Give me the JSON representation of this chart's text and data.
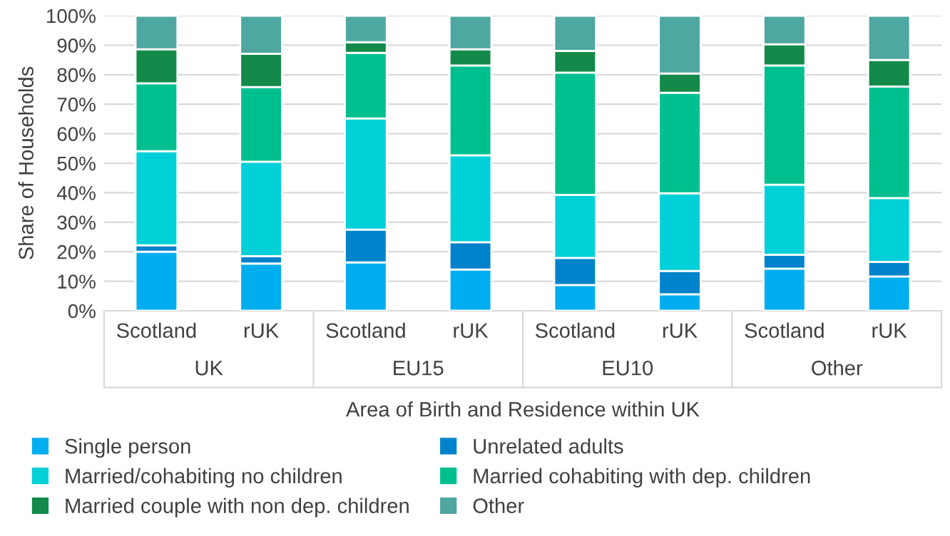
{
  "chart_data": {
    "type": "bar",
    "stacked": true,
    "categories": [
      "Scotland",
      "rUK",
      "Scotland",
      "rUK",
      "Scotland",
      "rUK",
      "Scotland",
      "rUK"
    ],
    "annotations": [
      "UK",
      "EU15",
      "EU10",
      "Other"
    ],
    "xlabel": "Area of Birth and Residence within UK",
    "ylabel": "Share of Households",
    "ylim": [
      0,
      100
    ],
    "yticks": [
      {
        "value": 0,
        "label": "0%"
      },
      {
        "value": 10,
        "label": "10%"
      },
      {
        "value": 20,
        "label": "20%"
      },
      {
        "value": 30,
        "label": "30%"
      },
      {
        "value": 40,
        "label": "40%"
      },
      {
        "value": 50,
        "label": "50%"
      },
      {
        "value": 60,
        "label": "60%"
      },
      {
        "value": 70,
        "label": "70%"
      },
      {
        "value": 80,
        "label": "80%"
      },
      {
        "value": 90,
        "label": "90%"
      },
      {
        "value": 100,
        "label": "100%"
      }
    ],
    "grid": "y",
    "legend": "bottom",
    "series": [
      {
        "name": "Single person",
        "color": "#00aeef",
        "values": [
          20.0,
          16.0,
          16.4,
          14.0,
          8.7,
          5.6,
          14.3,
          11.6
        ]
      },
      {
        "name": "Unrelated adults",
        "color": "#0083ca",
        "values": [
          2.2,
          2.5,
          11.1,
          9.2,
          9.2,
          7.9,
          4.7,
          5.0
        ]
      },
      {
        "name": "Married/cohabiting no children",
        "color": "#00d0d8",
        "values": [
          31.9,
          32.0,
          37.7,
          29.5,
          21.4,
          26.3,
          23.7,
          21.6
        ]
      },
      {
        "name": "Married cohabiting with dep. children",
        "color": "#00bf8f",
        "values": [
          23.0,
          25.3,
          22.2,
          30.4,
          41.4,
          34.1,
          40.4,
          37.8
        ]
      },
      {
        "name": "Married couple with non dep. children",
        "color": "#138a4a",
        "values": [
          11.5,
          11.3,
          3.6,
          5.5,
          7.4,
          6.5,
          7.2,
          9.0
        ]
      },
      {
        "name": "Other",
        "color": "#4ea7a0",
        "values": [
          11.4,
          12.9,
          9.0,
          11.4,
          11.9,
          19.6,
          9.7,
          15.0
        ]
      }
    ]
  }
}
